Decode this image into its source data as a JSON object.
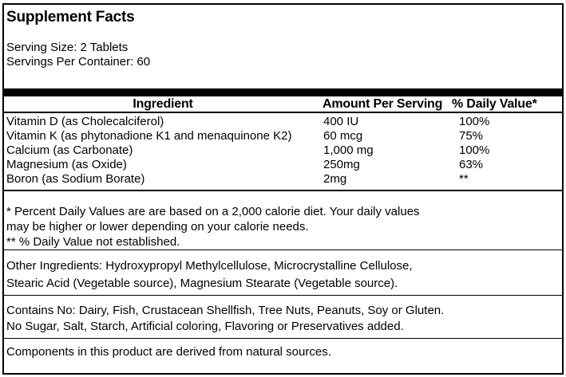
{
  "label": {
    "title": "Supplement Facts",
    "serving_size": "Serving Size: 2 Tablets",
    "servings_per_container": "Servings Per Container: 60"
  },
  "table": {
    "headers": [
      "Ingredient",
      "Amount Per Serving",
      "% Daily Value*"
    ],
    "rows": [
      {
        "ingredient": "Vitamin D (as Cholecalciferol)",
        "amount": "400 IU",
        "daily_value": "100%"
      },
      {
        "ingredient": "Vitamin K (as phytonadione K1 and menaquinone K2)",
        "amount": "60 mcg",
        "daily_value": "75%"
      },
      {
        "ingredient": "Calcium (as Carbonate)",
        "amount": "1,000 mg",
        "daily_value": "100%"
      },
      {
        "ingredient": "Magnesium (as Oxide)",
        "amount": "250mg",
        "daily_value": "63%"
      },
      {
        "ingredient": "Boron (as Sodium Borate)",
        "amount": "2mg",
        "daily_value": "**"
      }
    ]
  },
  "footnotes": {
    "lines": [
      "* Percent Daily Values are are based on a 2,000 calorie diet. Your daily values",
      "may be higher or lower depending on your calorie needs.",
      "** % Daily Value not established."
    ]
  },
  "other_ingredients": {
    "lines": [
      "Other Ingredients: Hydroxypropyl Methylcellulose, Microcrystalline Cellulose,",
      "Stearic Acid (Vegetable source), Magnesium Stearate (Vegetable source)."
    ]
  },
  "contains": {
    "lines": [
      "Contains No: Dairy, Fish, Crustacean Shellfish, Tree Nuts, Peanuts, Soy or Gluten.",
      "No Sugar, Salt, Starch, Artificial coloring, Flavoring or Preservatives added."
    ]
  },
  "components_note": "Components in this product are derived from natural sources.",
  "colors": {
    "border": "#000000",
    "background": "#ffffff",
    "text": "#000000"
  }
}
